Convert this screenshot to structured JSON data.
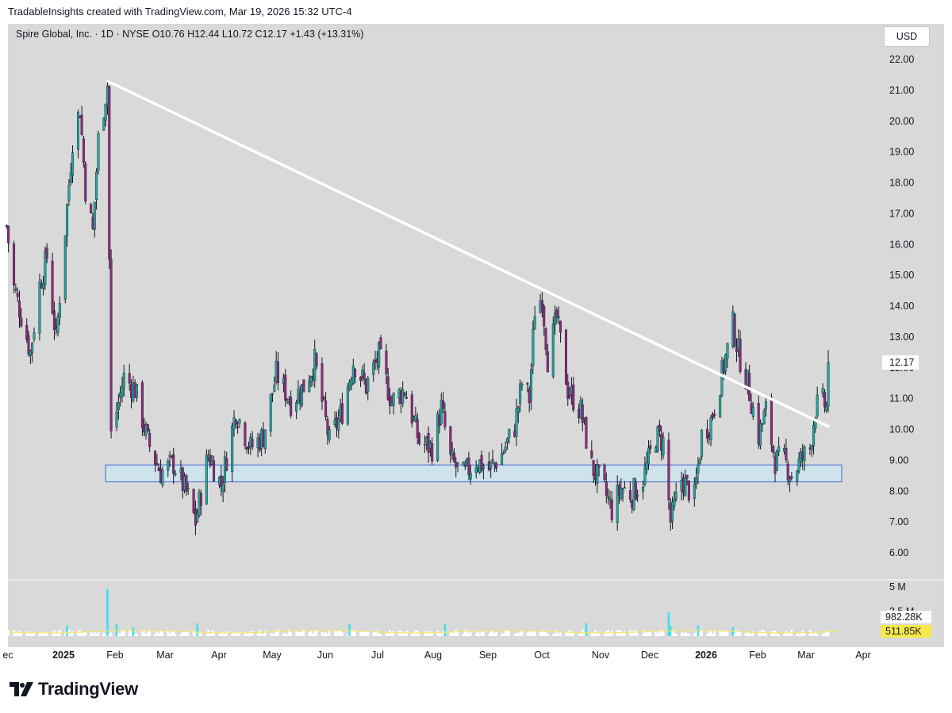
{
  "header": {
    "created_line": "TradableInsights created with TradingView.com, Mar 19, 2026 15:32 UTC-4",
    "legend": "Spire Global, Inc. · 1D · NYSE  O10.76  H12.44  L10.72  C12.17  +1.43 (+13.31%)",
    "currency": "USD",
    "brand": "TradingView"
  },
  "colors": {
    "up": "#26a69a",
    "down": "#8e2a7c",
    "wick": "#131722",
    "trendline": "#ffffff",
    "zone_fill": "#cfe3ea",
    "zone_border": "#3f63d6",
    "volume_main": "#ffffff",
    "volume_spike": "#3fe0e6",
    "volume_ma": "#f2ea6b",
    "volume_badge": "#f7e94a"
  },
  "chart_data": {
    "type": "candlestick",
    "price_axis": {
      "ylim": [
        5.5,
        22.5
      ],
      "ticks": [
        "22.00",
        "21.00",
        "20.00",
        "19.00",
        "18.00",
        "17.00",
        "16.00",
        "15.00",
        "14.00",
        "13.00",
        "12.00",
        "11.00",
        "10.00",
        "9.00",
        "8.00",
        "7.00",
        "6.00"
      ],
      "last_price_label": "12.17"
    },
    "volume_axis": {
      "ticks": [
        "5 M",
        "2.5 M"
      ],
      "labels": [
        "982.28K",
        "511.85K"
      ]
    },
    "time_axis": {
      "labels": [
        {
          "text": "ec",
          "bold": false
        },
        {
          "text": "2025",
          "bold": true
        },
        {
          "text": "Feb",
          "bold": false
        },
        {
          "text": "Mar",
          "bold": false
        },
        {
          "text": "Apr",
          "bold": false
        },
        {
          "text": "May",
          "bold": false
        },
        {
          "text": "Jun",
          "bold": false
        },
        {
          "text": "Jul",
          "bold": false
        },
        {
          "text": "Aug",
          "bold": false
        },
        {
          "text": "Sep",
          "bold": false
        },
        {
          "text": "Oct",
          "bold": false
        },
        {
          "text": "Nov",
          "bold": false
        },
        {
          "text": "Dec",
          "bold": false
        },
        {
          "text": "2026",
          "bold": true
        },
        {
          "text": "Feb",
          "bold": false
        },
        {
          "text": "Mar",
          "bold": false
        },
        {
          "text": "Apr",
          "bold": false
        }
      ]
    },
    "trendline": {
      "start": {
        "date": "2025-02-19",
        "price": 21.3
      },
      "end": {
        "date": "2026-03-19",
        "price": 10.1
      }
    },
    "support_zone": {
      "start_date": "2025-02-18",
      "end_date": "2026-03-19",
      "low": 8.3,
      "high": 8.85
    },
    "price_path": [
      {
        "date": "2024-12-26",
        "price": 16.6
      },
      {
        "date": "2024-12-30",
        "price": 14.6
      },
      {
        "date": "2025-01-03",
        "price": 13.7
      },
      {
        "date": "2025-01-08",
        "price": 12.5
      },
      {
        "date": "2025-01-13",
        "price": 14.7
      },
      {
        "date": "2025-01-17",
        "price": 15.6
      },
      {
        "date": "2025-01-22",
        "price": 12.9
      },
      {
        "date": "2025-01-27",
        "price": 16.5
      },
      {
        "date": "2025-01-31",
        "price": 19.4
      },
      {
        "date": "2025-02-04",
        "price": 20.4
      },
      {
        "date": "2025-02-07",
        "price": 17.8
      },
      {
        "date": "2025-02-11",
        "price": 16.4
      },
      {
        "date": "2025-02-14",
        "price": 19.4
      },
      {
        "date": "2025-02-19",
        "price": 21.2
      },
      {
        "date": "2025-02-21",
        "price": 9.8
      },
      {
        "date": "2025-02-28",
        "price": 11.7
      },
      {
        "date": "2025-03-06",
        "price": 11.3
      },
      {
        "date": "2025-03-13",
        "price": 9.6
      },
      {
        "date": "2025-03-20",
        "price": 8.6
      },
      {
        "date": "2025-03-27",
        "price": 8.9
      },
      {
        "date": "2025-04-04",
        "price": 7.8
      },
      {
        "date": "2025-04-08",
        "price": 7.0
      },
      {
        "date": "2025-04-15",
        "price": 9.2
      },
      {
        "date": "2025-04-22",
        "price": 8.2
      },
      {
        "date": "2025-04-30",
        "price": 10.6
      },
      {
        "date": "2025-05-08",
        "price": 9.4
      },
      {
        "date": "2025-05-15",
        "price": 9.8
      },
      {
        "date": "2025-05-22",
        "price": 11.8
      },
      {
        "date": "2025-05-30",
        "price": 10.9
      },
      {
        "date": "2025-06-06",
        "price": 11.4
      },
      {
        "date": "2025-06-12",
        "price": 12.2
      },
      {
        "date": "2025-06-20",
        "price": 9.6
      },
      {
        "date": "2025-06-27",
        "price": 10.6
      },
      {
        "date": "2025-07-03",
        "price": 12.2
      },
      {
        "date": "2025-07-10",
        "price": 11.4
      },
      {
        "date": "2025-07-17",
        "price": 12.4
      },
      {
        "date": "2025-07-24",
        "price": 10.9
      },
      {
        "date": "2025-07-31",
        "price": 11.3
      },
      {
        "date": "2025-08-08",
        "price": 9.6
      },
      {
        "date": "2025-08-15",
        "price": 9.4
      },
      {
        "date": "2025-08-20",
        "price": 10.7
      },
      {
        "date": "2025-08-25",
        "price": 9.0
      },
      {
        "date": "2025-09-01",
        "price": 8.5
      },
      {
        "date": "2025-09-08",
        "price": 9.0
      },
      {
        "date": "2025-09-15",
        "price": 8.7
      },
      {
        "date": "2025-09-22",
        "price": 9.2
      },
      {
        "date": "2025-09-29",
        "price": 10.1
      },
      {
        "date": "2025-10-03",
        "price": 11.5
      },
      {
        "date": "2025-10-07",
        "price": 11.0
      },
      {
        "date": "2025-10-10",
        "price": 13.9
      },
      {
        "date": "2025-10-14",
        "price": 14.3
      },
      {
        "date": "2025-10-17",
        "price": 12.3
      },
      {
        "date": "2025-10-22",
        "price": 13.6
      },
      {
        "date": "2025-10-28",
        "price": 11.3
      },
      {
        "date": "2025-11-04",
        "price": 10.6
      },
      {
        "date": "2025-11-10",
        "price": 8.8
      },
      {
        "date": "2025-11-17",
        "price": 8.0
      },
      {
        "date": "2025-11-21",
        "price": 7.4
      },
      {
        "date": "2025-11-26",
        "price": 8.1
      },
      {
        "date": "2025-12-02",
        "price": 7.9
      },
      {
        "date": "2025-12-08",
        "price": 8.4
      },
      {
        "date": "2025-12-15",
        "price": 9.8
      },
      {
        "date": "2025-12-19",
        "price": 9.6
      },
      {
        "date": "2025-12-23",
        "price": 7.0
      },
      {
        "date": "2025-12-29",
        "price": 8.4
      },
      {
        "date": "2026-01-05",
        "price": 7.8
      },
      {
        "date": "2026-01-09",
        "price": 9.8
      },
      {
        "date": "2026-01-14",
        "price": 10.3
      },
      {
        "date": "2026-01-20",
        "price": 11.8
      },
      {
        "date": "2026-01-26",
        "price": 13.4
      },
      {
        "date": "2026-01-29",
        "price": 12.5
      },
      {
        "date": "2026-02-03",
        "price": 11.5
      },
      {
        "date": "2026-02-09",
        "price": 9.8
      },
      {
        "date": "2026-02-13",
        "price": 10.6
      },
      {
        "date": "2026-02-18",
        "price": 9.0
      },
      {
        "date": "2026-02-23",
        "price": 9.0
      },
      {
        "date": "2026-02-27",
        "price": 8.5
      },
      {
        "date": "2026-03-04",
        "price": 9.0
      },
      {
        "date": "2026-03-09",
        "price": 9.4
      },
      {
        "date": "2026-03-12",
        "price": 10.7
      },
      {
        "date": "2026-03-16",
        "price": 10.9
      },
      {
        "date": "2026-03-18",
        "price": 10.7
      },
      {
        "date": "2026-03-19",
        "price": 12.17
      }
    ],
    "volume_spikes": [
      {
        "date": "2025-01-28",
        "volume": 1.1
      },
      {
        "date": "2025-02-19",
        "volume": 4.8
      },
      {
        "date": "2025-02-24",
        "volume": 1.2
      },
      {
        "date": "2025-03-05",
        "volume": 0.9
      },
      {
        "date": "2025-04-09",
        "volume": 1.3
      },
      {
        "date": "2025-07-01",
        "volume": 1.2
      },
      {
        "date": "2025-08-22",
        "volume": 1.2
      },
      {
        "date": "2025-11-07",
        "volume": 1.3
      },
      {
        "date": "2025-12-22",
        "volume": 2.4
      },
      {
        "date": "2025-12-23",
        "volume": 1.0
      },
      {
        "date": "2026-01-07",
        "volume": 1.1
      },
      {
        "date": "2026-01-26",
        "volume": 0.9
      }
    ]
  }
}
